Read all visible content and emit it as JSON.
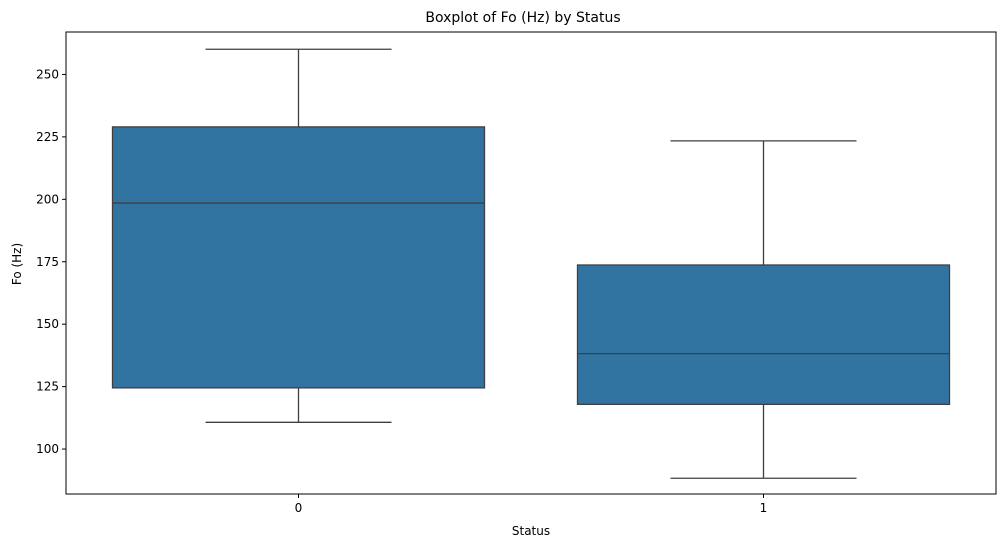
{
  "chart_data": {
    "type": "boxplot",
    "title": "Boxplot of Fo (Hz) by Status",
    "xlabel": "Status",
    "ylabel": "Fo (Hz)",
    "ylim": [
      82,
      267
    ],
    "yticks": [
      100,
      125,
      150,
      175,
      200,
      225,
      250
    ],
    "ytick_labels": [
      "100",
      "125",
      "150",
      "175",
      "200",
      "225",
      "250"
    ],
    "categories": [
      "0",
      "1"
    ],
    "box_color": "#3274a1",
    "line_color": "#3f3f3f",
    "grid": false,
    "boxes": [
      {
        "category": "0",
        "whisker_low": 110.7,
        "q1": 124.5,
        "median": 198.5,
        "q3": 229.0,
        "whisker_high": 260.1
      },
      {
        "category": "1",
        "whisker_low": 88.3,
        "q1": 117.9,
        "median": 138.2,
        "q3": 173.7,
        "whisker_high": 223.4
      }
    ]
  }
}
